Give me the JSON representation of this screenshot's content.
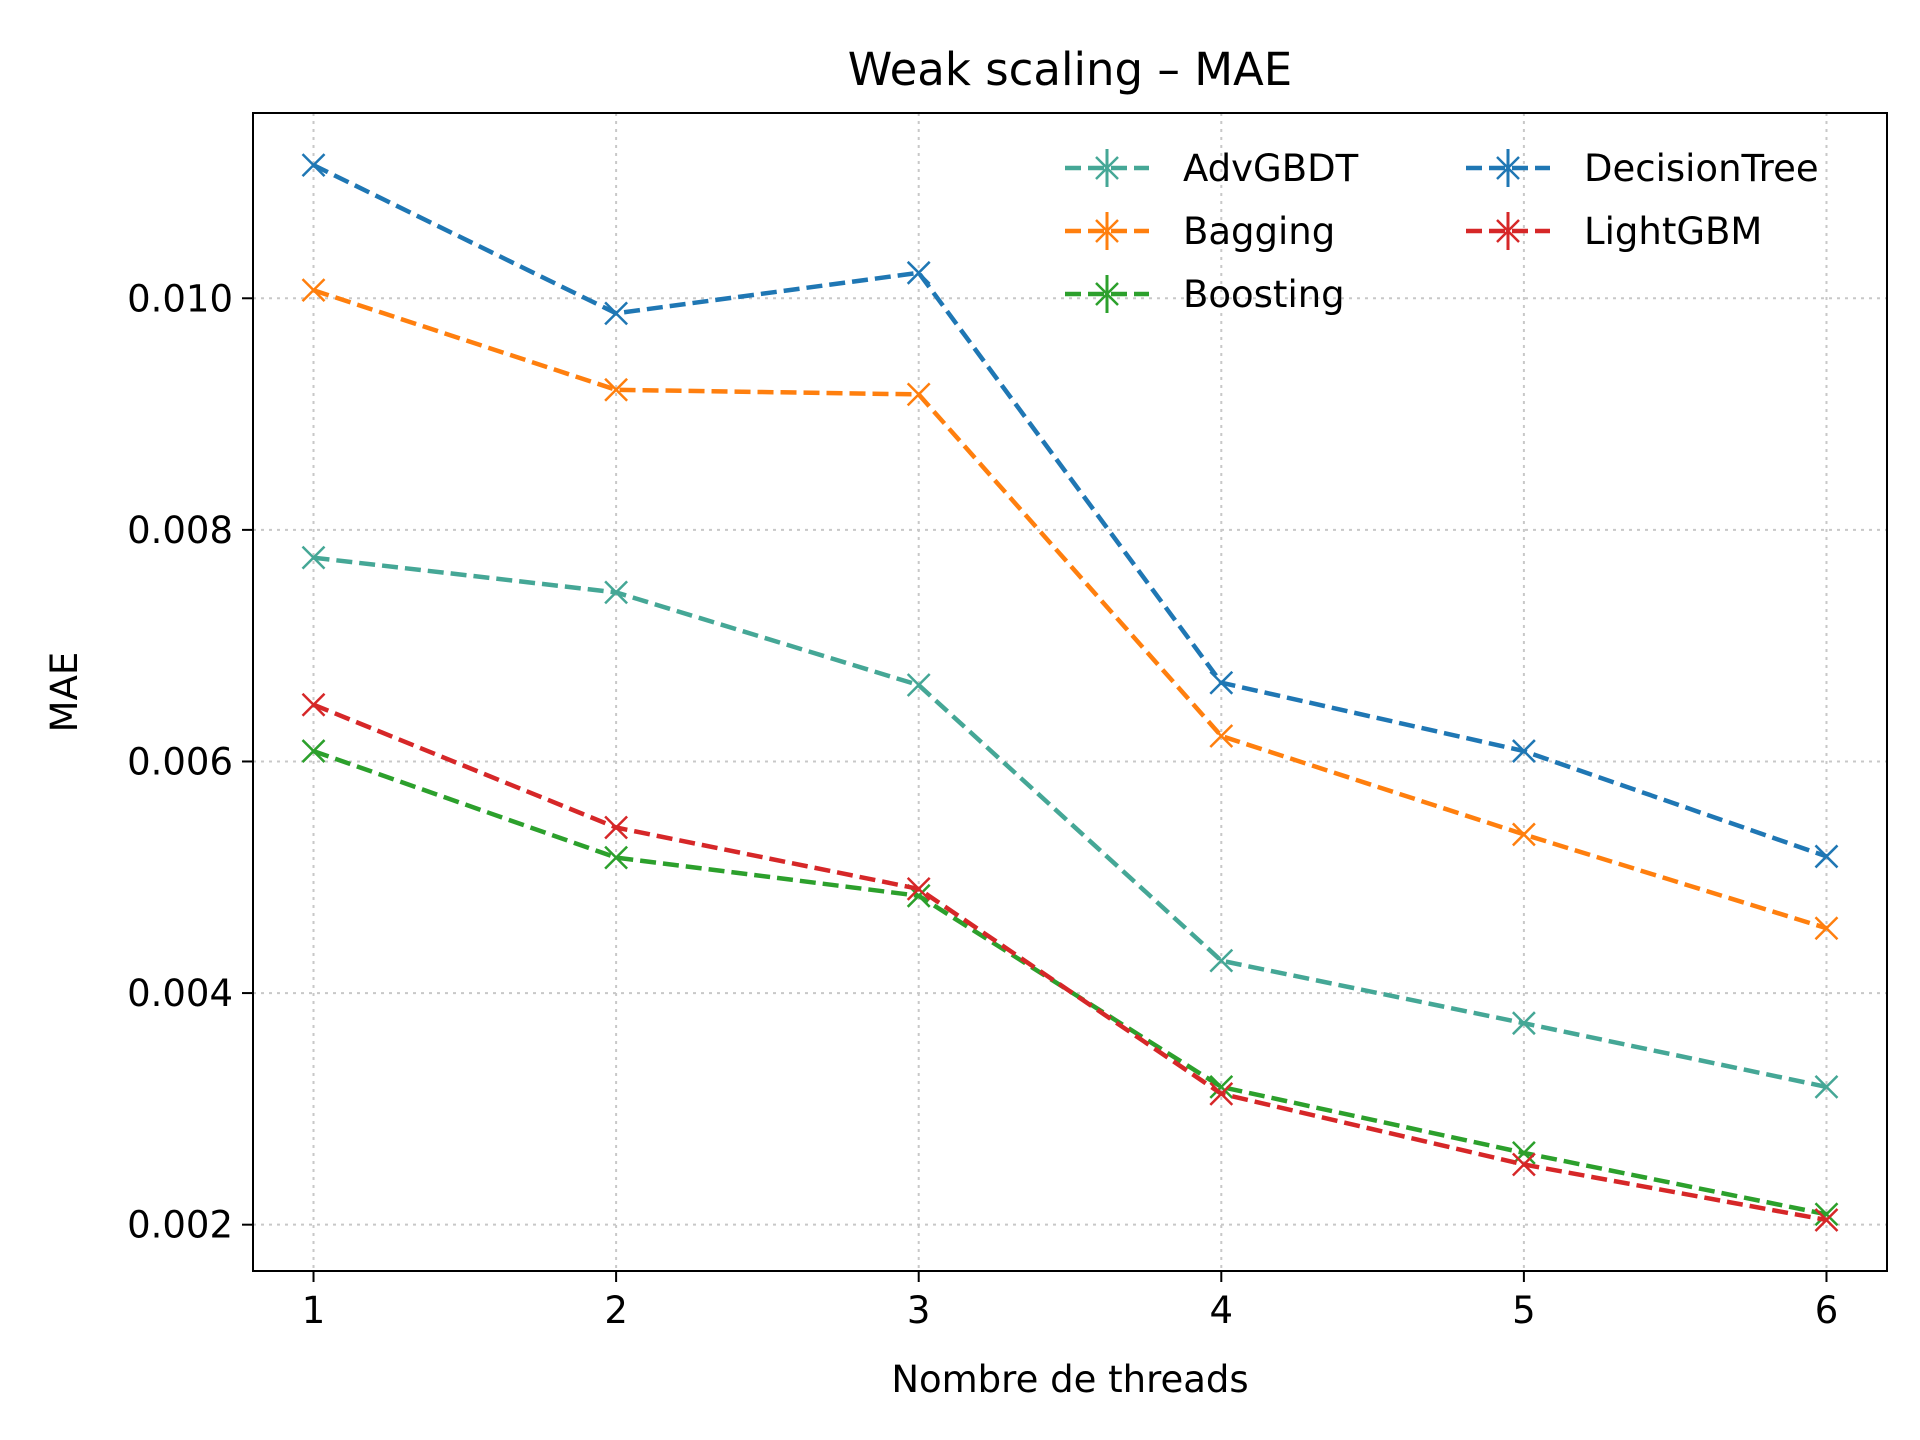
{
  "chart_data": {
    "type": "line",
    "title": "Weak scaling – MAE",
    "xlabel": "Nombre de threads",
    "ylabel": "MAE",
    "x": [
      1,
      2,
      3,
      4,
      5,
      6
    ],
    "xlim": [
      0.8,
      6.2
    ],
    "ylim": [
      0.0016,
      0.0116
    ],
    "x_ticks": [
      "1",
      "2",
      "3",
      "4",
      "5",
      "6"
    ],
    "y_ticks": [
      "0.002",
      "0.004",
      "0.006",
      "0.008",
      "0.010"
    ],
    "grid": true,
    "legend_position": "top-right",
    "series": [
      {
        "name": "AdvGBDT",
        "color": "#45a796",
        "values": [
          0.00776,
          0.00746,
          0.00666,
          0.00428,
          0.00374,
          0.00319
        ]
      },
      {
        "name": "Bagging",
        "color": "#ff7f0e",
        "values": [
          0.01007,
          0.00921,
          0.00917,
          0.00622,
          0.00537,
          0.00456
        ]
      },
      {
        "name": "Boosting",
        "color": "#2ca02c",
        "values": [
          0.00609,
          0.00517,
          0.00484,
          0.00319,
          0.00262,
          0.00209
        ]
      },
      {
        "name": "DecisionTree",
        "color": "#1f77b4",
        "values": [
          0.01115,
          0.00987,
          0.01022,
          0.00668,
          0.00609,
          0.00518
        ]
      },
      {
        "name": "LightGBM",
        "color": "#d62728",
        "values": [
          0.00649,
          0.00543,
          0.0049,
          0.00313,
          0.00252,
          0.00204
        ]
      }
    ]
  }
}
